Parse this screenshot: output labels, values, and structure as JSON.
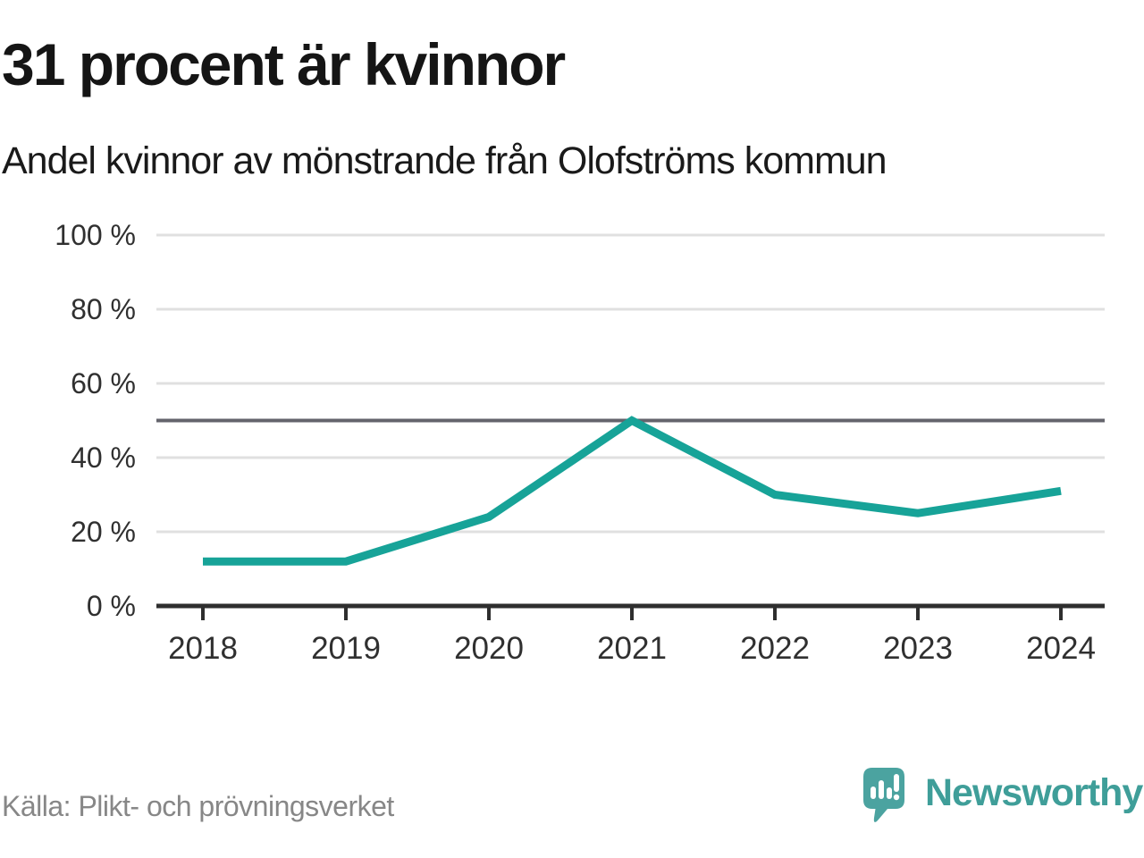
{
  "header": {
    "title": "31 procent är kvinnor",
    "subtitle": "Andel kvinnor av mönstrande från Olofströms kommun"
  },
  "chart_data": {
    "type": "line",
    "title": "31 procent är kvinnor",
    "subtitle": "Andel kvinnor av mönstrande från Olofströms kommun",
    "categories": [
      "2018",
      "2019",
      "2020",
      "2021",
      "2022",
      "2023",
      "2024"
    ],
    "series": [
      {
        "name": "Andel kvinnor av mönstrande",
        "values": [
          12,
          12,
          24,
          50,
          30,
          25,
          31
        ]
      }
    ],
    "xlabel": "",
    "ylabel": "",
    "ylim": [
      0,
      100
    ],
    "yticks": [
      0,
      20,
      40,
      60,
      80,
      100
    ],
    "ytick_labels": [
      "0 %",
      "20 %",
      "40 %",
      "60 %",
      "80 %",
      "100 %"
    ],
    "reference_line": 50,
    "grid": true,
    "legend": false,
    "colors": {
      "line": "#17a398",
      "grid": "#e0e0e0",
      "reference": "#64646c",
      "axis": "#2e2e2e",
      "axis_text": "#303030"
    }
  },
  "footer": {
    "source": "Källa: Plikt- och prövningsverket",
    "brand": "Newsworthy",
    "brand_color": "#3f9e99",
    "logo_icon": "speech-bubble-bar-chart-exclamation"
  }
}
